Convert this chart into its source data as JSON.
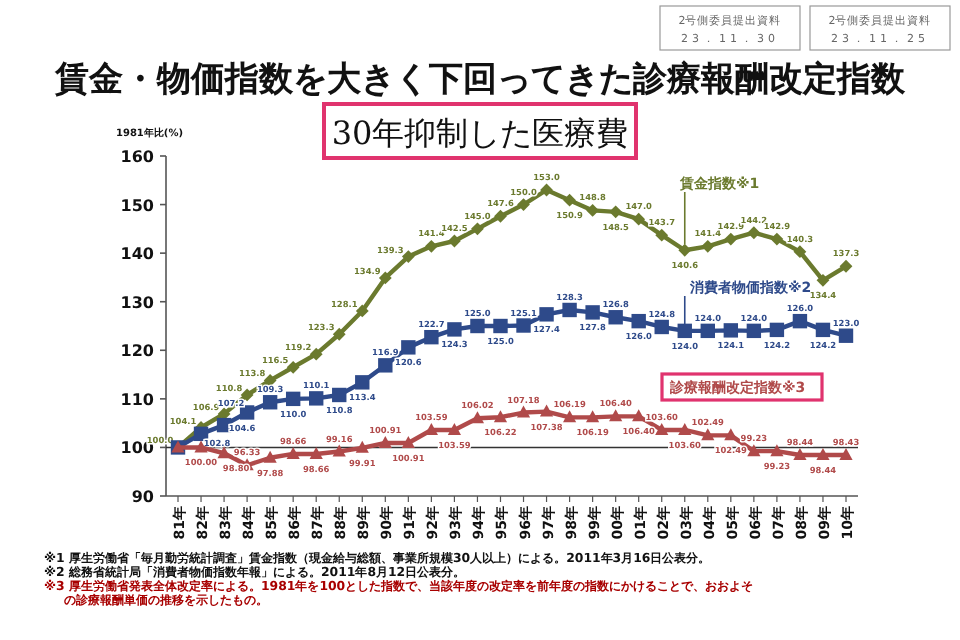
{
  "chart_data": {
    "type": "line",
    "title": "賃金・物価指数を大きく下回ってきた診療報酬改定指数",
    "subtitle": "30年抑制した医療費",
    "ylabel": "1981年比(%)",
    "categories": [
      "81年",
      "82年",
      "83年",
      "84年",
      "85年",
      "86年",
      "87年",
      "88年",
      "89年",
      "90年",
      "91年",
      "92年",
      "93年",
      "94年",
      "95年",
      "96年",
      "97年",
      "98年",
      "99年",
      "00年",
      "01年",
      "02年",
      "03年",
      "04年",
      "05年",
      "06年",
      "07年",
      "08年",
      "09年",
      "10年"
    ],
    "ylim": [
      90,
      160
    ],
    "yticks": [
      90,
      100,
      110,
      120,
      130,
      140,
      150,
      160
    ],
    "grid": false,
    "legend": false,
    "line_style": "solid",
    "series": [
      {
        "name": "賃金指数※1",
        "color": "#6b7a2e",
        "marker": "diamond",
        "values": [
          100.0,
          104.1,
          106.9,
          110.8,
          113.8,
          116.5,
          119.2,
          123.3,
          128.1,
          134.9,
          139.3,
          141.4,
          142.5,
          145.0,
          147.6,
          150.0,
          153.0,
          150.9,
          148.8,
          148.5,
          147.0,
          143.7,
          140.6,
          141.4,
          142.9,
          144.2,
          142.9,
          140.3,
          134.4,
          137.3
        ],
        "value_labels": [
          "100.0",
          "104.1",
          "106.9",
          "110.8",
          "113.8",
          "116.5",
          "119.2",
          "123.3",
          "128.1",
          "134.9",
          "139.3",
          "141.4",
          "142.5",
          "145.0",
          "147.6",
          "150.0",
          "153.0",
          "150.9",
          "148.8",
          "148.5",
          "147.0",
          "143.7",
          "140.6",
          "141.4",
          "142.9",
          "144.2",
          "142.9",
          "140.3",
          "134.4",
          "137.3"
        ]
      },
      {
        "name": "消費者物価指数※2",
        "color": "#2e4a8a",
        "marker": "square",
        "values": [
          100.0,
          102.8,
          104.6,
          107.2,
          109.3,
          110.0,
          110.1,
          110.8,
          113.4,
          116.9,
          120.6,
          122.7,
          124.3,
          125.0,
          125.0,
          125.1,
          127.4,
          128.3,
          127.8,
          126.8,
          126.0,
          124.8,
          124.0,
          124.0,
          124.1,
          124.0,
          124.2,
          126.0,
          124.2,
          123.0
        ],
        "value_labels": [
          null,
          "102.8",
          "104.6",
          "107.2",
          "109.3",
          "110.0",
          "110.1",
          "110.8",
          "113.4",
          "116.9",
          "120.6",
          "122.7",
          "124.3",
          "125.0",
          "125.0",
          "125.1",
          "127.4",
          "128.3",
          "127.8",
          "126.8",
          "126.0",
          "124.8",
          "124.0",
          "124.0",
          "124.1",
          "124.0",
          "124.2",
          "126.0",
          "124.2",
          "123.0"
        ]
      },
      {
        "name": "診療報酬改定指数※3",
        "color": "#b04a4a",
        "marker": "triangle",
        "values": [
          100.0,
          100.0,
          98.8,
          96.33,
          97.88,
          98.66,
          98.66,
          99.16,
          99.91,
          100.91,
          100.91,
          103.59,
          103.59,
          106.02,
          106.22,
          107.18,
          107.38,
          106.19,
          106.19,
          106.4,
          106.4,
          103.6,
          103.6,
          102.49,
          102.49,
          99.23,
          99.23,
          98.44,
          98.44,
          98.43
        ],
        "value_labels": [
          null,
          "100.00",
          "98.80",
          "96.33",
          "97.88",
          "98.66",
          "98.66",
          "99.16",
          "99.91",
          "100.91",
          "100.91",
          "103.59",
          "103.59",
          "106.02",
          "106.22",
          "107.18",
          "107.38",
          "106.19",
          "106.19",
          "106.40",
          "106.40",
          "103.60",
          "103.60",
          "102.49",
          "102.49",
          "99.23",
          "99.23",
          "98.44",
          "98.44",
          "98.43"
        ]
      }
    ],
    "ref_lines": [
      {
        "axis": "y",
        "value": 100,
        "color": "#333333"
      }
    ],
    "annotations": [
      "2号側委員提出資料 23．11．30",
      "2号側委員提出資料 23．11．25",
      "※1 厚生労働省「毎月勤労統計調査」賃金指数（現金給与総額、事業所規模30人以上）による。2011年3月16日公表分。",
      "※2 総務省統計局「消費者物価指数年報」による。2011年8月12日公表分。",
      "※3 厚生労働省発表全体改定率による。1981年を100とした指数で、当該年度の改定率を前年度の指数にかけることで、おおよその診療報酬単価の推移を示したもの。"
    ]
  }
}
